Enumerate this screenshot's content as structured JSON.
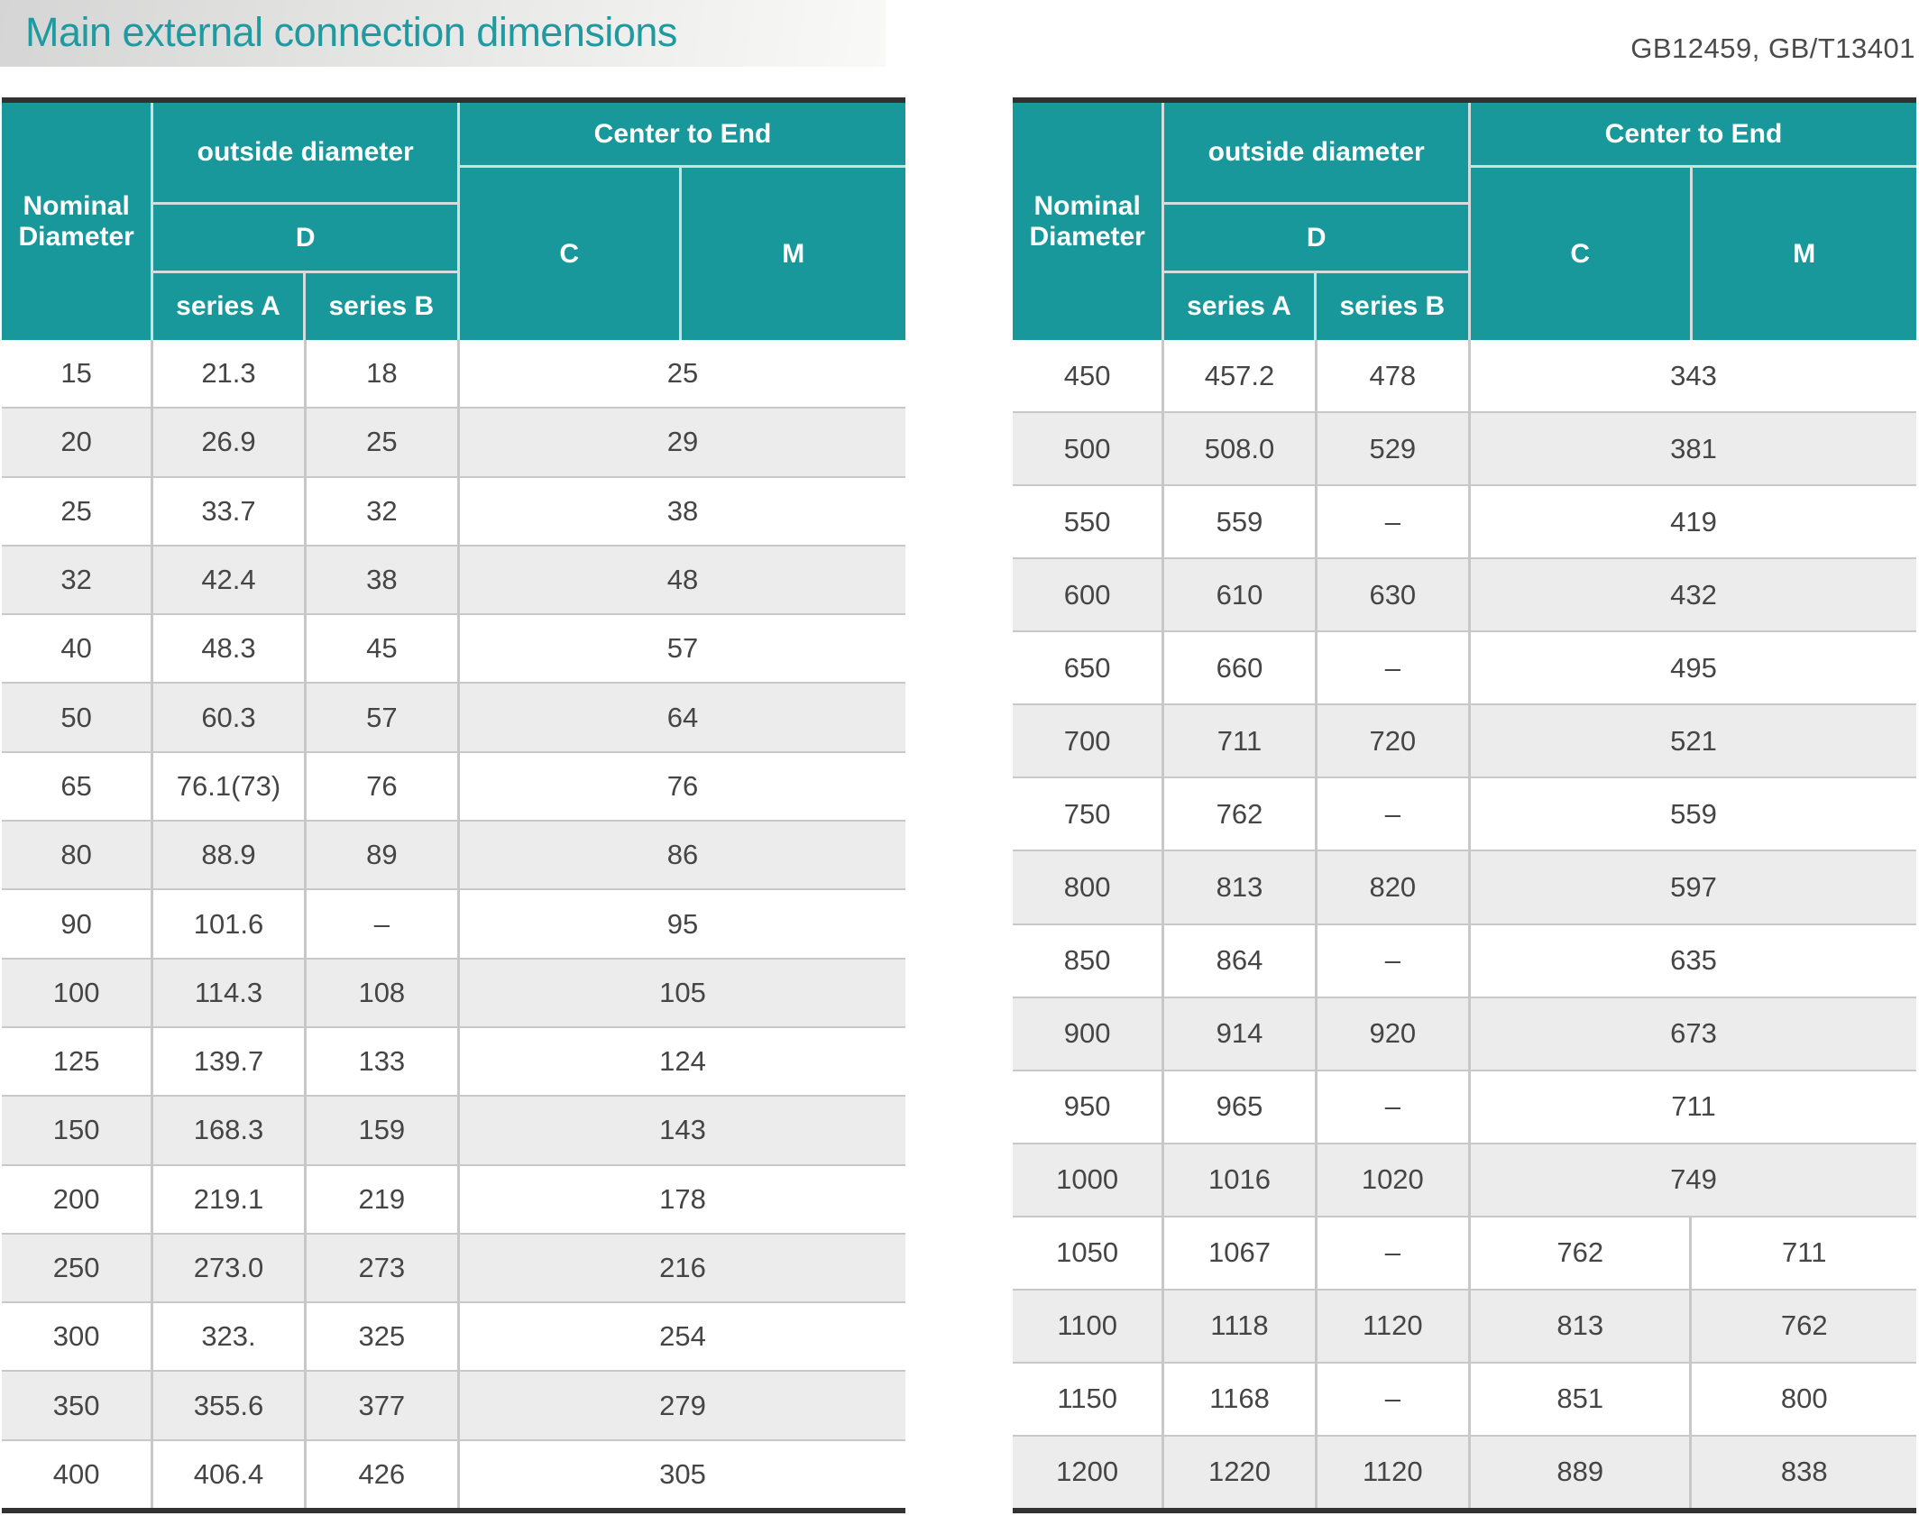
{
  "page": {
    "title": "Main external connection dimensions",
    "standards": "GB12459, GB/T13401"
  },
  "colors": {
    "accent_teal": "#18989b",
    "title_teal": "#1f9aa1",
    "row_alt_gray": "#ececec",
    "border_dark": "#323232"
  },
  "header": {
    "nominal": "Nominal Diameter",
    "outside": "outside diameter",
    "d": "D",
    "series_a": "series A",
    "series_b": "series B",
    "center": "Center to End",
    "c": "C",
    "m": "M"
  },
  "tables": [
    {
      "id": "left",
      "rows": [
        {
          "nd": "15",
          "series_a": "21.3",
          "series_b": "18",
          "cm": "25"
        },
        {
          "nd": "20",
          "series_a": "26.9",
          "series_b": "25",
          "cm": "29"
        },
        {
          "nd": "25",
          "series_a": "33.7",
          "series_b": "32",
          "cm": "38"
        },
        {
          "nd": "32",
          "series_a": "42.4",
          "series_b": "38",
          "cm": "48"
        },
        {
          "nd": "40",
          "series_a": "48.3",
          "series_b": "45",
          "cm": "57"
        },
        {
          "nd": "50",
          "series_a": "60.3",
          "series_b": "57",
          "cm": "64"
        },
        {
          "nd": "65",
          "series_a": "76.1(73)",
          "series_b": "76",
          "cm": "76"
        },
        {
          "nd": "80",
          "series_a": "88.9",
          "series_b": "89",
          "cm": "86"
        },
        {
          "nd": "90",
          "series_a": "101.6",
          "series_b": "–",
          "cm": "95"
        },
        {
          "nd": "100",
          "series_a": "114.3",
          "series_b": "108",
          "cm": "105"
        },
        {
          "nd": "125",
          "series_a": "139.7",
          "series_b": "133",
          "cm": "124"
        },
        {
          "nd": "150",
          "series_a": "168.3",
          "series_b": "159",
          "cm": "143"
        },
        {
          "nd": "200",
          "series_a": "219.1",
          "series_b": "219",
          "cm": "178"
        },
        {
          "nd": "250",
          "series_a": "273.0",
          "series_b": "273",
          "cm": "216"
        },
        {
          "nd": "300",
          "series_a": "323.",
          "series_b": "325",
          "cm": "254"
        },
        {
          "nd": "350",
          "series_a": "355.6",
          "series_b": "377",
          "cm": "279"
        },
        {
          "nd": "400",
          "series_a": "406.4",
          "series_b": "426",
          "cm": "305"
        }
      ]
    },
    {
      "id": "right",
      "rows": [
        {
          "nd": "450",
          "series_a": "457.2",
          "series_b": "478",
          "cm": "343"
        },
        {
          "nd": "500",
          "series_a": "508.0",
          "series_b": "529",
          "cm": "381"
        },
        {
          "nd": "550",
          "series_a": "559",
          "series_b": "–",
          "cm": "419"
        },
        {
          "nd": "600",
          "series_a": "610",
          "series_b": "630",
          "cm": "432"
        },
        {
          "nd": "650",
          "series_a": "660",
          "series_b": "–",
          "cm": "495"
        },
        {
          "nd": "700",
          "series_a": "711",
          "series_b": "720",
          "cm": "521"
        },
        {
          "nd": "750",
          "series_a": "762",
          "series_b": "–",
          "cm": "559"
        },
        {
          "nd": "800",
          "series_a": "813",
          "series_b": "820",
          "cm": "597"
        },
        {
          "nd": "850",
          "series_a": "864",
          "series_b": "–",
          "cm": "635"
        },
        {
          "nd": "900",
          "series_a": "914",
          "series_b": "920",
          "cm": "673"
        },
        {
          "nd": "950",
          "series_a": "965",
          "series_b": "–",
          "cm": "711"
        },
        {
          "nd": "1000",
          "series_a": "1016",
          "series_b": "1020",
          "cm": "749"
        },
        {
          "nd": "1050",
          "series_a": "1067",
          "series_b": "–",
          "c": "762",
          "m": "711"
        },
        {
          "nd": "1100",
          "series_a": "1118",
          "series_b": "1120",
          "c": "813",
          "m": "762"
        },
        {
          "nd": "1150",
          "series_a": "1168",
          "series_b": "–",
          "c": "851",
          "m": "800"
        },
        {
          "nd": "1200",
          "series_a": "1220",
          "series_b": "1120",
          "c": "889",
          "m": "838"
        }
      ]
    }
  ]
}
